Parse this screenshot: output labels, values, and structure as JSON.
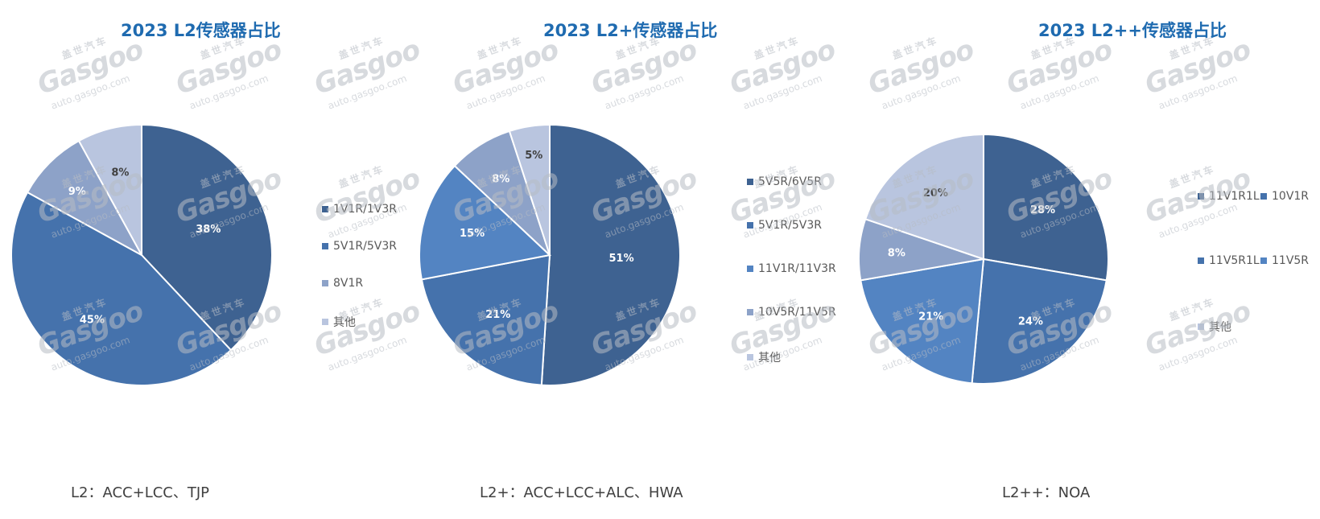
{
  "chart_data": [
    {
      "type": "pie",
      "title": "2023 L2传感器占比",
      "slices": [
        {
          "name": "1V1R/1V3R",
          "value": 38,
          "label": "38%",
          "color": "#3e6291"
        },
        {
          "name": "5V1R/5V3R",
          "value": 45,
          "label": "45%",
          "color": "#4572ac"
        },
        {
          "name": "8V1R",
          "value": 9,
          "label": "9%",
          "color": "#8da2c8"
        },
        {
          "name": "其他",
          "value": 8,
          "label": "8%",
          "color": "#b9c5df"
        }
      ],
      "legend": "right",
      "footnote": "L2：ACC+LCC、TJP"
    },
    {
      "type": "pie",
      "title": "2023 L2+传感器占比",
      "slices": [
        {
          "name": "5V5R/6V5R",
          "value": 51,
          "label": "51%",
          "color": "#3e6291"
        },
        {
          "name": "5V1R/5V3R",
          "value": 21,
          "label": "21%",
          "color": "#4572ac"
        },
        {
          "name": "11V1R/11V3R",
          "value": 15,
          "label": "15%",
          "color": "#5384c2"
        },
        {
          "name": "10V5R/11V5R",
          "value": 8,
          "label": "8%",
          "color": "#8da2c8"
        },
        {
          "name": "其他",
          "value": 5,
          "label": "5%",
          "color": "#b9c5df"
        }
      ],
      "legend": "right",
      "footnote": "L2+：ACC+LCC+ALC、HWA"
    },
    {
      "type": "pie",
      "title": "2023 L2++传感器占比",
      "slices": [
        {
          "name": "11V1R1L",
          "value": 28,
          "label": "28%",
          "color": "#3e6291"
        },
        {
          "name": "10V1R",
          "value": 0,
          "label": "",
          "color": "#4572ac"
        },
        {
          "name": "11V5R1L",
          "value": 24,
          "label": "24%",
          "color": "#4572ac"
        },
        {
          "name": "11V5R",
          "value": 0,
          "label": "",
          "color": "#5384c2"
        },
        {
          "name": "",
          "value": 21,
          "label": "21%",
          "color": "#5384c2"
        },
        {
          "name": "",
          "value": 8,
          "label": "8%",
          "color": "#8da2c8"
        },
        {
          "name": "其他",
          "value": 20,
          "label": "20%",
          "color": "#b9c5df"
        }
      ],
      "legend": "right",
      "footnote": "L2++：NOA"
    }
  ],
  "watermark": {
    "cn": "盖世汽车",
    "logo": "Gasgoo",
    "url": "auto.gasgoo.com"
  }
}
